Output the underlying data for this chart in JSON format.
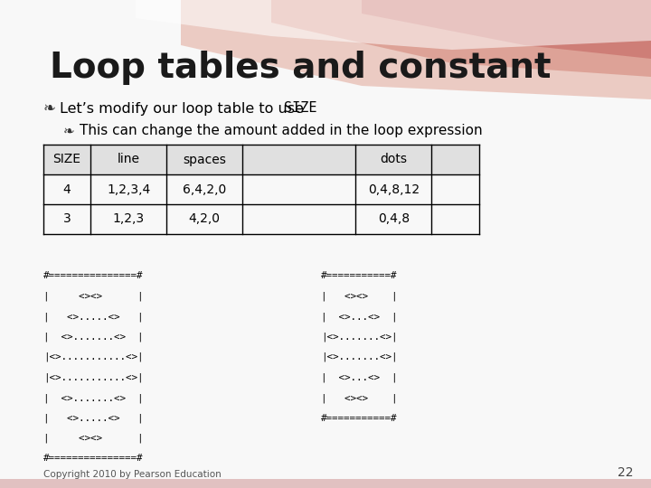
{
  "title": "Loop tables and constant",
  "bullet1_prefix": "Let’s modify our loop table to use ",
  "bullet1_code": "SIZE",
  "bullet2": "This can change the amount added in the loop expression",
  "table_headers": [
    "SIZE",
    "line",
    "spaces",
    "",
    "dots",
    ""
  ],
  "table_rows": [
    [
      "4",
      "1,2,3,4",
      "6,4,2,0",
      "",
      "0,4,8,12",
      ""
    ],
    [
      "3",
      "1,2,3",
      "4,2,0",
      "",
      "0,4,8",
      ""
    ]
  ],
  "code_block1": [
    "#===============#",
    "|     <><>      |",
    "|   <>.....<>   |",
    "|  <>.......<>  |",
    "|<>...........<>|",
    "|<>...........<>|",
    "|  <>.......<>  |",
    "|   <>.....<>   |",
    "|     <><>      |",
    "#===============#"
  ],
  "code_block2": [
    "#===========#",
    "|   <><>    |",
    "|  <>...<>  |",
    "|<>.......<>|",
    "|<>.......<>|",
    "|  <>...<>  |",
    "|   <><>    |",
    "#===========#"
  ],
  "copyright": "Copyright 2010 by Pearson Education",
  "page_num": "22",
  "slide_bg": "#F8F8F8",
  "header_bg": "#E8E8E8",
  "wave_color1": "#C8706A",
  "wave_color2": "#D4887A",
  "wave_color3": "#E0A090"
}
